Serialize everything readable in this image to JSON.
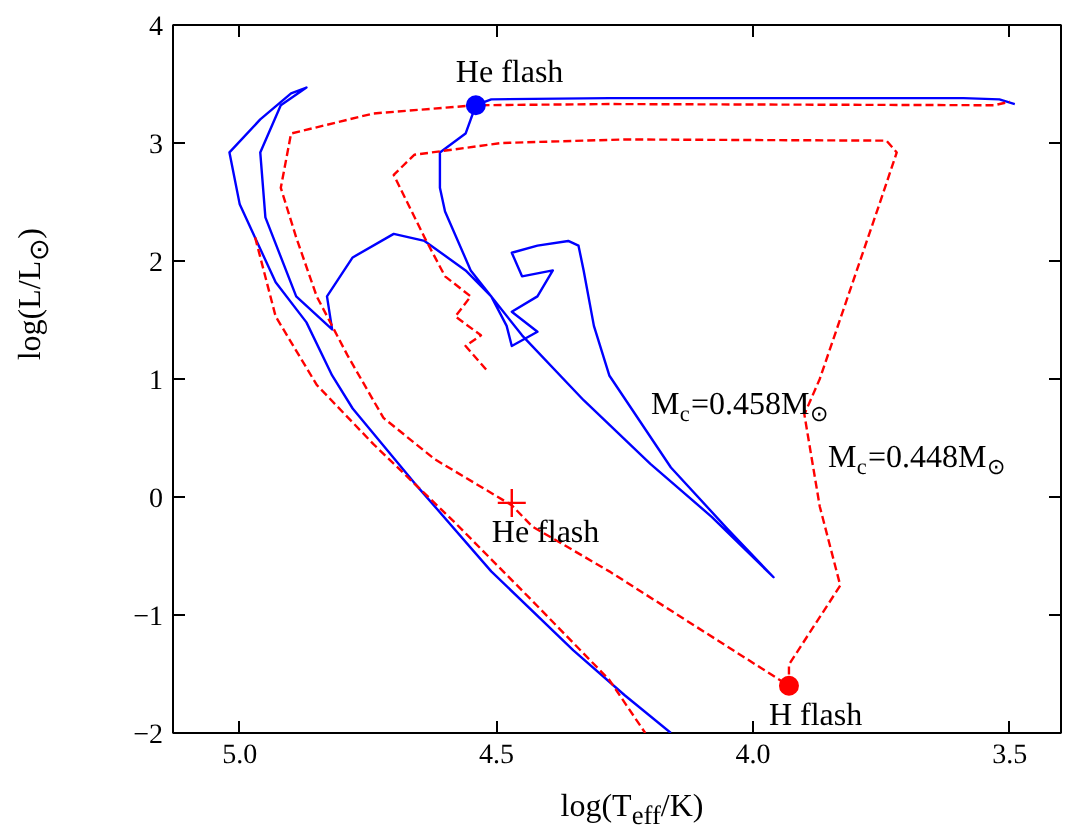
{
  "chart_data": {
    "type": "line",
    "xlabel": "log(T$_{eff}$/K)",
    "ylabel": "log(L/L$_{⊙}$)",
    "xlim": [
      5.13,
      3.4
    ],
    "ylim": [
      -2,
      4
    ],
    "xticks": [
      {
        "value": 5,
        "label": "5.0"
      },
      4.5,
      {
        "value": 4,
        "label": "4.0"
      },
      3.5
    ],
    "yticks": [
      {
        "value": -2,
        "label": "−2"
      },
      {
        "value": -1,
        "label": "−1"
      },
      0,
      1,
      2,
      3,
      4
    ],
    "grid": false,
    "series": [
      {
        "color": "#0000ff",
        "line_style": "solid",
        "x": [
          3.49,
          3.52,
          3.59,
          3.89,
          4.28,
          4.51,
          4.54,
          4.56,
          4.61,
          4.61,
          4.6,
          4.55,
          4.45,
          4.33,
          4.2,
          4.08,
          3.96,
          4.05,
          4.16,
          4.28,
          4.31,
          4.33,
          4.34,
          4.36,
          4.42,
          4.47,
          4.45,
          4.39,
          4.42,
          4.47,
          4.42,
          4.47,
          4.48,
          4.51,
          4.56,
          4.64,
          4.7,
          4.78,
          4.83,
          4.82,
          4.89,
          4.95,
          4.96,
          4.92,
          4.87,
          4.9,
          4.96,
          5.02,
          5.0,
          4.93,
          4.87,
          4.82,
          4.78,
          4.66,
          4.51,
          4.35,
          4.25,
          4.16
        ],
        "values": [
          3.33,
          3.37,
          3.38,
          3.38,
          3.38,
          3.37,
          3.32,
          3.08,
          2.92,
          2.62,
          2.42,
          1.92,
          1.37,
          0.82,
          0.28,
          -0.17,
          -0.68,
          -0.27,
          0.25,
          1.03,
          1.45,
          1.92,
          2.13,
          2.17,
          2.13,
          2.07,
          1.87,
          1.92,
          1.7,
          1.57,
          1.4,
          1.28,
          1.45,
          1.7,
          1.92,
          2.17,
          2.23,
          2.03,
          1.7,
          1.42,
          1.7,
          2.37,
          2.92,
          3.32,
          3.47,
          3.42,
          3.2,
          2.92,
          2.48,
          1.82,
          1.48,
          1.03,
          0.75,
          0.12,
          -0.63,
          -1.3,
          -1.68,
          -2.0
        ]
      },
      {
        "color": "#ff0000",
        "line_style": "dashed",
        "x": [
          4.52,
          4.56,
          4.53,
          4.58,
          4.55,
          4.6,
          4.64,
          4.7,
          4.66,
          4.49,
          4.25,
          3.74,
          3.72,
          3.75,
          3.87,
          3.9,
          3.87,
          3.83,
          3.93,
          3.93,
          4.28,
          4.43,
          4.47,
          4.62,
          4.72,
          4.79,
          4.85,
          4.89,
          4.92,
          4.9,
          4.74,
          4.54,
          4.28,
          3.53,
          3.5
        ],
        "values": [
          1.08,
          1.28,
          1.37,
          1.53,
          1.7,
          1.87,
          2.2,
          2.73,
          2.9,
          3.0,
          3.03,
          3.02,
          2.92,
          2.53,
          1.0,
          0.7,
          -0.08,
          -0.75,
          -1.42,
          -1.6,
          -0.63,
          -0.25,
          -0.07,
          0.32,
          0.67,
          1.2,
          1.7,
          2.2,
          2.62,
          3.08,
          3.25,
          3.32,
          3.33,
          3.32,
          3.35
        ]
      },
      {
        "color": "#ff0000",
        "line_style": "dashed",
        "x": [
          4.97,
          4.93,
          4.85,
          4.74,
          4.58,
          4.43,
          4.28,
          4.21
        ],
        "values": [
          2.2,
          1.53,
          0.95,
          0.45,
          -0.22,
          -0.88,
          -1.55,
          -2.0
        ]
      },
      {
        "type": "scatter",
        "marker": "circle",
        "color": "#0000ff",
        "x": [
          4.54
        ],
        "values": [
          3.32
        ]
      },
      {
        "type": "scatter",
        "marker": "cross",
        "color": "#ff0000",
        "x": [
          4.47
        ],
        "values": [
          -0.05
        ]
      },
      {
        "type": "scatter",
        "marker": "circle",
        "color": "#ff0000",
        "x": [
          3.93
        ],
        "values": [
          -1.6
        ]
      }
    ],
    "annotations": [
      {
        "text": "He flash",
        "x": 4.54,
        "y": 3.32
      },
      {
        "text": "He flash",
        "x": 4.47,
        "y": -0.05
      },
      {
        "text": "H flash",
        "x": 3.93,
        "y": -1.6
      },
      {
        "text": "M$_{c}$=0.458M$_{⊙}$",
        "x": 4.23,
        "y": 0.78
      },
      {
        "text": "M$_{c}$=0.448M$_{⊙}$",
        "x": 3.885,
        "y": 0.33
      }
    ]
  }
}
